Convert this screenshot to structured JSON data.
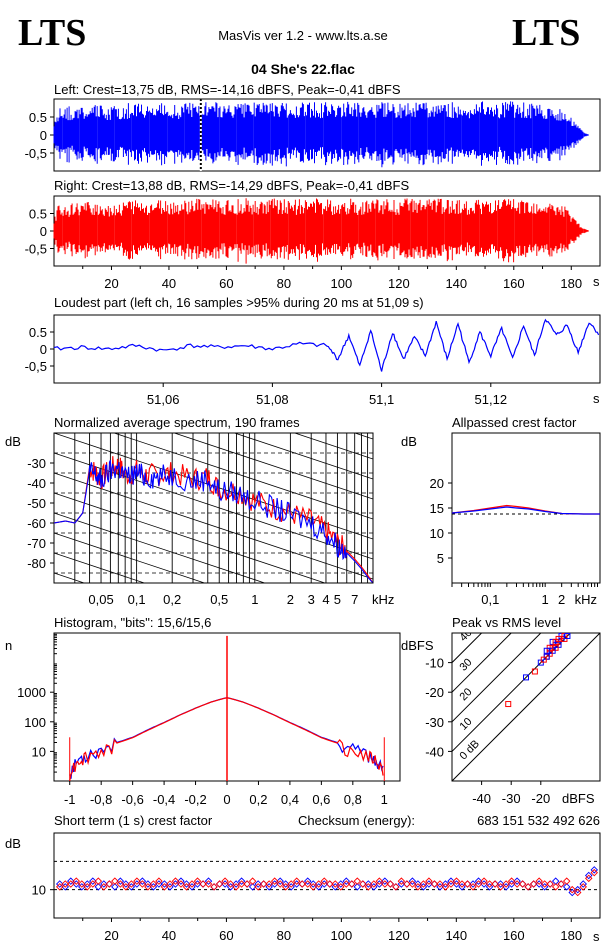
{
  "header": {
    "logo_left": "LTS",
    "logo_right": "LTS",
    "app_title": "MasVis ver 1.2 - www.lts.a.se",
    "file_title": "04 She's 22.flac"
  },
  "colors": {
    "left": "#0000ff",
    "right": "#ff0000",
    "grid": "#000000"
  },
  "chart_data": [
    {
      "id": "left_waveform",
      "type": "area",
      "title": "Left: Crest=13,75 dB, RMS=-14,16 dBFS, Peak=-0,41 dBFS",
      "ytick_labels": [
        "0.5",
        "0",
        "-0,5"
      ],
      "yticks": [
        0.5,
        0,
        -0.5
      ],
      "ylim": [
        -1,
        1
      ],
      "xlim": [
        0,
        190
      ],
      "loudest_marker_s": 51.09,
      "envelope_seconds": [
        0,
        2,
        4,
        8,
        14,
        20,
        26,
        32,
        38,
        44,
        50,
        52,
        56,
        60,
        66,
        72,
        78,
        84,
        90,
        96,
        100,
        106,
        112,
        118,
        124,
        130,
        136,
        142,
        148,
        154,
        160,
        166,
        170,
        174,
        178,
        180,
        182,
        184,
        186
      ],
      "envelope_peak": [
        0.4,
        0.85,
        0.8,
        0.8,
        0.85,
        0.8,
        0.9,
        0.85,
        0.9,
        0.85,
        0.95,
        0.95,
        0.95,
        0.9,
        0.95,
        0.9,
        0.95,
        0.9,
        0.95,
        0.9,
        0.95,
        0.9,
        0.95,
        0.9,
        0.95,
        0.9,
        0.95,
        0.9,
        0.95,
        0.9,
        0.95,
        0.9,
        0.85,
        0.8,
        0.7,
        0.5,
        0.3,
        0.1,
        0.02
      ]
    },
    {
      "id": "right_waveform",
      "type": "area",
      "title": "Right: Crest=13,88 dB, RMS=-14,29 dBFS, Peak=-0,41 dBFS",
      "ytick_labels": [
        "0.5",
        "0",
        "-0,5"
      ],
      "yticks": [
        0.5,
        0,
        -0.5
      ],
      "ylim": [
        -1,
        1
      ],
      "xlim": [
        0,
        190
      ],
      "xtick_labels": [
        "20",
        "40",
        "60",
        "80",
        "100",
        "120",
        "140",
        "160",
        "180"
      ],
      "xticks": [
        20,
        40,
        60,
        80,
        100,
        120,
        140,
        160,
        180
      ],
      "xunit": "s",
      "envelope_seconds": [
        0,
        2,
        4,
        8,
        14,
        20,
        26,
        32,
        38,
        44,
        50,
        52,
        56,
        60,
        66,
        72,
        78,
        84,
        90,
        96,
        100,
        106,
        112,
        118,
        124,
        130,
        136,
        142,
        148,
        154,
        160,
        166,
        170,
        174,
        178,
        180,
        182,
        184,
        186
      ],
      "envelope_peak": [
        0.4,
        0.85,
        0.8,
        0.8,
        0.85,
        0.8,
        0.9,
        0.85,
        0.9,
        0.85,
        0.95,
        0.95,
        0.95,
        0.9,
        0.95,
        0.9,
        0.95,
        0.9,
        0.95,
        0.9,
        0.95,
        0.9,
        0.95,
        0.9,
        0.95,
        0.9,
        0.95,
        0.9,
        0.95,
        0.9,
        0.95,
        0.9,
        0.85,
        0.8,
        0.7,
        0.5,
        0.3,
        0.1,
        0.02
      ]
    },
    {
      "id": "loudest_part",
      "type": "line",
      "title": "Loudest part (left  ch, 16 samples >95% during 20 ms at 51,09 s)",
      "ytick_labels": [
        "0.5",
        "0",
        "-0,5"
      ],
      "yticks": [
        0.5,
        0,
        -0.5
      ],
      "ylim": [
        -1,
        1
      ],
      "xlim": [
        51.04,
        51.14
      ],
      "xtick_labels": [
        "51,06",
        "51,08",
        "51,1",
        "51,12"
      ],
      "xticks": [
        51.06,
        51.08,
        51.1,
        51.12
      ],
      "xunit": "s",
      "x": [
        51.04,
        51.045,
        51.05,
        51.055,
        51.06,
        51.065,
        51.07,
        51.075,
        51.08,
        51.085,
        51.09,
        51.092,
        51.094,
        51.096,
        51.098,
        51.1,
        51.102,
        51.104,
        51.106,
        51.108,
        51.11,
        51.112,
        51.114,
        51.116,
        51.118,
        51.12,
        51.122,
        51.124,
        51.126,
        51.128,
        51.13,
        51.132,
        51.134,
        51.136,
        51.138,
        51.14
      ],
      "y": [
        0.0,
        0.05,
        0.0,
        0.1,
        -0.05,
        0.1,
        0.05,
        0.1,
        0.0,
        0.15,
        0.1,
        -0.3,
        0.4,
        -0.5,
        0.55,
        -0.65,
        0.5,
        -0.3,
        0.35,
        -0.2,
        0.8,
        -0.3,
        0.75,
        -0.4,
        0.5,
        -0.2,
        0.6,
        -0.3,
        0.7,
        -0.2,
        0.9,
        0.4,
        0.7,
        -0.1,
        0.8,
        0.4
      ]
    },
    {
      "id": "spectrum",
      "type": "line",
      "title": "Normalized average spectrum, 190 frames",
      "ylabel": "dB",
      "ytick_labels": [
        "-30",
        "-40",
        "-50",
        "-60",
        "-70",
        "-80"
      ],
      "yticks": [
        -30,
        -40,
        -50,
        -60,
        -70,
        -80
      ],
      "ylim": [
        -90,
        -15
      ],
      "xscale": "log",
      "xlim": [
        0.02,
        10
      ],
      "xtick_labels": [
        "0,05",
        "0,1",
        "0,2",
        "0,5",
        "1",
        "2",
        "3",
        "4",
        "5",
        "7"
      ],
      "xticks": [
        0.05,
        0.1,
        0.2,
        0.5,
        1,
        2,
        3,
        4,
        5,
        7
      ],
      "xunit": "kHz",
      "x": [
        0.02,
        0.025,
        0.03,
        0.035,
        0.04,
        0.045,
        0.05,
        0.06,
        0.07,
        0.08,
        0.1,
        0.12,
        0.15,
        0.2,
        0.3,
        0.4,
        0.5,
        0.7,
        1,
        1.5,
        2,
        3,
        4,
        5,
        6,
        7,
        8,
        9,
        10
      ],
      "series": [
        {
          "color": "#ff0000",
          "values": [
            -60,
            -59,
            -60,
            -55,
            -32,
            -35,
            -38,
            -33,
            -31,
            -36,
            -34,
            -36,
            -36,
            -35,
            -38,
            -37,
            -43,
            -44,
            -49,
            -53,
            -55,
            -59,
            -64,
            -70,
            -74,
            -78,
            -82,
            -86,
            -90
          ]
        },
        {
          "color": "#0000ff",
          "values": [
            -60,
            -59,
            -60,
            -55,
            -34,
            -36,
            -39,
            -34,
            -32,
            -37,
            -35,
            -37,
            -37,
            -36,
            -39,
            -38,
            -44,
            -45,
            -49,
            -53,
            -56,
            -60,
            -65,
            -71,
            -75,
            -79,
            -83,
            -87,
            -90
          ]
        }
      ]
    },
    {
      "id": "allpassed_crest",
      "type": "line",
      "title": "Allpassed crest factor",
      "ylabel": "dB",
      "ytick_labels": [
        "20",
        "15",
        "10",
        "5"
      ],
      "yticks": [
        20,
        15,
        10,
        5
      ],
      "ylim": [
        0,
        30
      ],
      "xscale": "log",
      "xlim": [
        0.02,
        10
      ],
      "xtick_labels": [
        "0,1",
        "1",
        "2",
        "kHz"
      ],
      "xticks": [
        0.1,
        1,
        2
      ],
      "reference_db": 13.8,
      "x": [
        0.02,
        0.05,
        0.1,
        0.2,
        0.3,
        0.5,
        1,
        2,
        5,
        10
      ],
      "series": [
        {
          "color": "#ff0000",
          "values": [
            14.0,
            14.5,
            15.0,
            15.5,
            15.3,
            15.0,
            14.4,
            13.9,
            13.8,
            13.8
          ]
        },
        {
          "color": "#0000ff",
          "values": [
            14.0,
            14.4,
            14.8,
            15.2,
            15.0,
            14.8,
            14.3,
            13.9,
            13.8,
            13.8
          ]
        }
      ]
    },
    {
      "id": "histogram",
      "type": "line",
      "title": "Histogram, \"bits\": 15,6/15,6",
      "ylabel": "n",
      "yscale": "log",
      "ytick_labels": [
        "1000",
        "100",
        "10"
      ],
      "yticks": [
        1000,
        100,
        10
      ],
      "ylim": [
        1,
        100000
      ],
      "xlim": [
        -1.1,
        1.1
      ],
      "xtick_labels": [
        "-1",
        "-0,8",
        "-0,6",
        "-0,4",
        "-0,2",
        "0",
        "0,2",
        "0,4",
        "0,6",
        "0,8",
        "1"
      ],
      "xticks": [
        -1,
        -0.8,
        -0.6,
        -0.4,
        -0.2,
        0,
        0.2,
        0.4,
        0.6,
        0.8,
        1
      ],
      "x": [
        -1.0,
        -0.95,
        -0.9,
        -0.8,
        -0.7,
        -0.6,
        -0.5,
        -0.4,
        -0.3,
        -0.2,
        -0.1,
        -0.02,
        0,
        0.02,
        0.1,
        0.2,
        0.3,
        0.4,
        0.5,
        0.6,
        0.7,
        0.8,
        0.9,
        0.95,
        1.0
      ],
      "series": [
        {
          "color": "#0000ff",
          "values": [
            2,
            5,
            8,
            12,
            20,
            30,
            55,
            95,
            170,
            290,
            470,
            620,
            650,
            620,
            470,
            290,
            170,
            95,
            55,
            30,
            20,
            12,
            8,
            5,
            2
          ]
        },
        {
          "color": "#ff0000",
          "values": [
            2,
            5,
            7,
            11,
            19,
            29,
            53,
            93,
            168,
            288,
            468,
            618,
            650,
            618,
            468,
            288,
            168,
            93,
            53,
            29,
            19,
            11,
            7,
            5,
            2
          ]
        }
      ],
      "center_spike": 80000
    },
    {
      "id": "peak_vs_rms",
      "type": "scatter",
      "title": "Peak vs RMS level",
      "ylabel": "dBFS",
      "xlabel": "dBFS",
      "ytick_labels": [
        "-10",
        "-20",
        "-30",
        "-40"
      ],
      "yticks": [
        -10,
        -20,
        -30,
        -40
      ],
      "ylim": [
        -50,
        0
      ],
      "xtick_labels": [
        "-40",
        "-30",
        "-20"
      ],
      "xticks": [
        -40,
        -30,
        -20
      ],
      "xlim": [
        -50,
        0
      ],
      "diagonal_labels": [
        "40",
        "30",
        "20",
        "10",
        "0 dB"
      ],
      "diagonal_offsets": [
        40,
        30,
        20,
        10,
        0
      ],
      "points": [
        [
          -22,
          -13
        ],
        [
          -25,
          -15
        ],
        [
          -31,
          -24
        ],
        [
          -20,
          -10
        ],
        [
          -18,
          -8
        ],
        [
          -17,
          -6
        ],
        [
          -16,
          -5
        ],
        [
          -15,
          -4
        ],
        [
          -14,
          -3
        ],
        [
          -13,
          -2
        ],
        [
          -12,
          -2
        ],
        [
          -14,
          -4
        ],
        [
          -15,
          -5
        ],
        [
          -16,
          -6
        ],
        [
          -17,
          -7
        ],
        [
          -18,
          -8
        ],
        [
          -19,
          -9
        ],
        [
          -13,
          -1
        ],
        [
          -12,
          -1
        ],
        [
          -11,
          -1
        ],
        [
          -14,
          -2
        ],
        [
          -16,
          -3
        ],
        [
          -17,
          -5
        ],
        [
          -18,
          -6
        ],
        [
          -15,
          -3
        ]
      ]
    },
    {
      "id": "short_term_crest",
      "type": "scatter",
      "title": "Short term (1 s) crest factor",
      "checksum_label": "Checksum (energy):",
      "checksum_value": "683 151 532 492 626",
      "ylabel": "dB",
      "ytick_labels": [
        "10"
      ],
      "yticks": [
        10
      ],
      "ylim": [
        0,
        30
      ],
      "reference_lines": [
        10,
        20
      ],
      "xlim": [
        0,
        190
      ],
      "xtick_labels": [
        "20",
        "40",
        "60",
        "80",
        "100",
        "120",
        "140",
        "160",
        "180"
      ],
      "xticks": [
        20,
        40,
        60,
        80,
        100,
        120,
        140,
        160,
        180
      ],
      "xunit": "s",
      "series": [
        {
          "color": "#0000ff",
          "values": [
            12,
            11,
            13,
            12,
            11,
            12,
            13,
            11,
            12,
            12,
            11,
            13,
            12,
            11,
            12,
            13,
            12,
            11,
            12,
            12,
            11,
            12,
            13,
            12,
            11,
            12,
            12,
            13,
            11,
            12,
            12,
            11,
            12,
            13,
            12,
            11,
            12,
            12,
            11,
            12,
            13,
            12,
            11,
            12,
            12,
            13,
            12,
            11,
            12,
            12,
            11,
            12,
            13,
            12,
            11,
            12,
            12,
            11,
            12,
            13,
            12,
            11,
            12,
            12,
            13,
            12,
            11,
            12,
            12,
            11,
            12,
            13,
            12,
            11,
            12,
            12,
            13,
            12,
            11,
            12,
            12,
            11,
            12,
            13,
            12,
            11,
            12,
            12,
            11,
            12,
            13,
            12,
            11,
            9,
            10,
            12,
            15,
            17
          ]
        },
        {
          "color": "#ff0000",
          "values": [
            11,
            12,
            12,
            13,
            12,
            11,
            12,
            13,
            11,
            12,
            13,
            12,
            11,
            12,
            13,
            12,
            11,
            12,
            13,
            11,
            12,
            13,
            12,
            11,
            12,
            13,
            12,
            12,
            11,
            12,
            13,
            12,
            11,
            12,
            12,
            13,
            11,
            12,
            12,
            13,
            12,
            11,
            12,
            13,
            12,
            12,
            11,
            12,
            13,
            12,
            12,
            11,
            12,
            12,
            13,
            12,
            11,
            12,
            13,
            12,
            12,
            11,
            13,
            12,
            12,
            11,
            12,
            13,
            12,
            12,
            11,
            12,
            13,
            12,
            12,
            11,
            12,
            13,
            12,
            12,
            11,
            12,
            13,
            12,
            12,
            11,
            12,
            13,
            12,
            12,
            11,
            12,
            13,
            10,
            9,
            11,
            14,
            16
          ]
        }
      ]
    }
  ]
}
